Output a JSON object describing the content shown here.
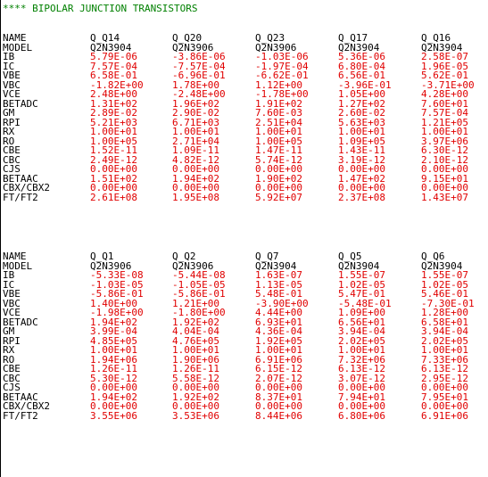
{
  "title": "**** BIPOLAR JUNCTION TRANSISTORS",
  "row_labels": [
    "IB",
    "IC",
    "VBE",
    "VBC",
    "VCE",
    "BETADC",
    "GM",
    "RPI",
    "RX",
    "RO",
    "CBE",
    "CBC",
    "CJS",
    "BETAAC",
    "CBX/CBX2",
    "FT/FT2"
  ],
  "header_labels": {
    "name": "NAME",
    "model": "MODEL"
  },
  "blocks": [
    {
      "names": [
        "Q_Q14",
        "Q_Q20",
        "Q_Q23",
        "Q_Q17",
        "Q_Q16"
      ],
      "models": [
        "Q2N3904",
        "Q2N3906",
        "Q2N3906",
        "Q2N3904",
        "Q2N3904"
      ],
      "values": [
        [
          "5.79E-06",
          "-3.86E-06",
          "-1.03E-06",
          "5.36E-06",
          "2.58E-07"
        ],
        [
          "7.57E-04",
          "-7.57E-04",
          "-1.97E-04",
          "6.80E-04",
          "1.96E-05"
        ],
        [
          "6.58E-01",
          "-6.96E-01",
          "-6.62E-01",
          "6.56E-01",
          "5.62E-01"
        ],
        [
          "-1.82E+00",
          "1.78E+00",
          "1.12E+00",
          "-3.96E-01",
          "-3.71E+00"
        ],
        [
          "2.48E+00",
          "-2.48E+00",
          "-1.78E+00",
          "1.05E+00",
          "4.28E+00"
        ],
        [
          "1.31E+02",
          "1.96E+02",
          "1.91E+02",
          "1.27E+02",
          "7.60E+01"
        ],
        [
          "2.89E-02",
          "2.90E-02",
          "7.60E-03",
          "2.60E-02",
          "7.57E-04"
        ],
        [
          "5.21E+03",
          "6.71E+03",
          "2.51E+04",
          "5.63E+03",
          "1.21E+05"
        ],
        [
          "1.00E+01",
          "1.00E+01",
          "1.00E+01",
          "1.00E+01",
          "1.00E+01"
        ],
        [
          "1.00E+05",
          "2.71E+04",
          "1.00E+05",
          "1.09E+05",
          "3.97E+06"
        ],
        [
          "1.52E-11",
          "1.09E-11",
          "1.47E-11",
          "1.43E-11",
          "6.30E-12"
        ],
        [
          "2.49E-12",
          "4.82E-12",
          "5.74E-12",
          "3.19E-12",
          "2.10E-12"
        ],
        [
          "0.00E+00",
          "0.00E+00",
          "0.00E+00",
          "0.00E+00",
          "0.00E+00"
        ],
        [
          "1.51E+02",
          "1.94E+02",
          "1.90E+02",
          "1.47E+02",
          "9.15E+01"
        ],
        [
          "0.00E+00",
          "0.00E+00",
          "0.00E+00",
          "0.00E+00",
          "0.00E+00"
        ],
        [
          "2.61E+08",
          "1.95E+08",
          "5.92E+07",
          "2.37E+08",
          "1.43E+07"
        ]
      ]
    },
    {
      "names": [
        "Q_Q1",
        "Q_Q2",
        "Q_Q7",
        "Q_Q5",
        "Q_Q6"
      ],
      "models": [
        "Q2N3906",
        "Q2N3906",
        "Q2N3904",
        "Q2N3904",
        "Q2N3904"
      ],
      "values": [
        [
          "-5.33E-08",
          "-5.44E-08",
          "1.63E-07",
          "1.55E-07",
          "1.55E-07"
        ],
        [
          "-1.03E-05",
          "-1.05E-05",
          "1.13E-05",
          "1.02E-05",
          "1.02E-05"
        ],
        [
          "-5.86E-01",
          "-5.86E-01",
          "5.48E-01",
          "5.47E-01",
          "5.46E-01"
        ],
        [
          "1.40E+00",
          "1.21E+00",
          "-3.90E+00",
          "-5.48E-01",
          "-7.30E-01"
        ],
        [
          "-1.98E+00",
          "-1.80E+00",
          "4.44E+00",
          "1.09E+00",
          "1.28E+00"
        ],
        [
          "1.94E+02",
          "1.92E+02",
          "6.93E+01",
          "6.56E+01",
          "6.58E+01"
        ],
        [
          "3.99E-04",
          "4.04E-04",
          "4.36E-04",
          "3.94E-04",
          "3.94E-04"
        ],
        [
          "4.85E+05",
          "4.76E+05",
          "1.92E+05",
          "2.02E+05",
          "2.02E+05"
        ],
        [
          "1.00E+01",
          "1.00E+01",
          "1.00E+01",
          "1.00E+01",
          "1.00E+01"
        ],
        [
          "1.94E+06",
          "1.90E+06",
          "6.91E+06",
          "7.32E+06",
          "7.33E+06"
        ],
        [
          "1.26E-11",
          "1.26E-11",
          "6.15E-12",
          "6.13E-12",
          "6.13E-12"
        ],
        [
          "5.30E-12",
          "5.58E-12",
          "2.07E-12",
          "3.07E-12",
          "2.95E-12"
        ],
        [
          "0.00E+00",
          "0.00E+00",
          "0.00E+00",
          "0.00E+00",
          "0.00E+00"
        ],
        [
          "1.94E+02",
          "1.92E+02",
          "8.37E+01",
          "7.94E+01",
          "7.95E+01"
        ],
        [
          "0.00E+00",
          "0.00E+00",
          "0.00E+00",
          "0.00E+00",
          "0.00E+00"
        ],
        [
          "3.55E+06",
          "3.53E+06",
          "8.44E+06",
          "6.80E+06",
          "6.91E+06"
        ]
      ]
    }
  ],
  "colors": {
    "title": "#008000",
    "labels": "#000000",
    "values": "#e00000",
    "background": "#ffffff"
  }
}
